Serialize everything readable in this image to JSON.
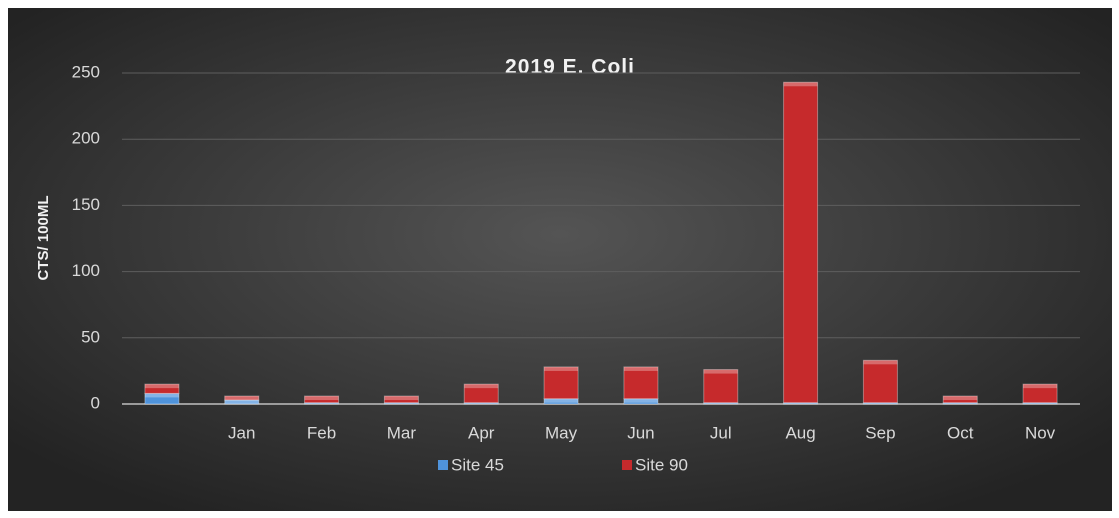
{
  "chart_data": {
    "type": "stacked_bar",
    "title": "2019 E. Coli",
    "y_label": "CTS/ 100ML",
    "categories": [
      null,
      "Jan",
      "Feb",
      "Mar",
      "Apr",
      "May",
      "Jun",
      "Jul",
      "Aug",
      "Sep",
      "Oct",
      "Nov"
    ],
    "series": [
      {
        "name": "Site 45",
        "color": "#4f93db",
        "values": [
          8,
          3,
          1,
          1,
          1,
          4,
          4,
          1,
          1,
          1,
          1,
          1
        ]
      },
      {
        "name": "Site 90",
        "color": "#c62a2c",
        "values": [
          7,
          3,
          5,
          5,
          14,
          24,
          24,
          25,
          242,
          32,
          5,
          14
        ]
      }
    ],
    "ylim": [
      0,
      250
    ],
    "yticks": [
      0,
      50,
      100,
      150,
      200,
      250
    ],
    "grid": true,
    "legend": "bottom"
  }
}
